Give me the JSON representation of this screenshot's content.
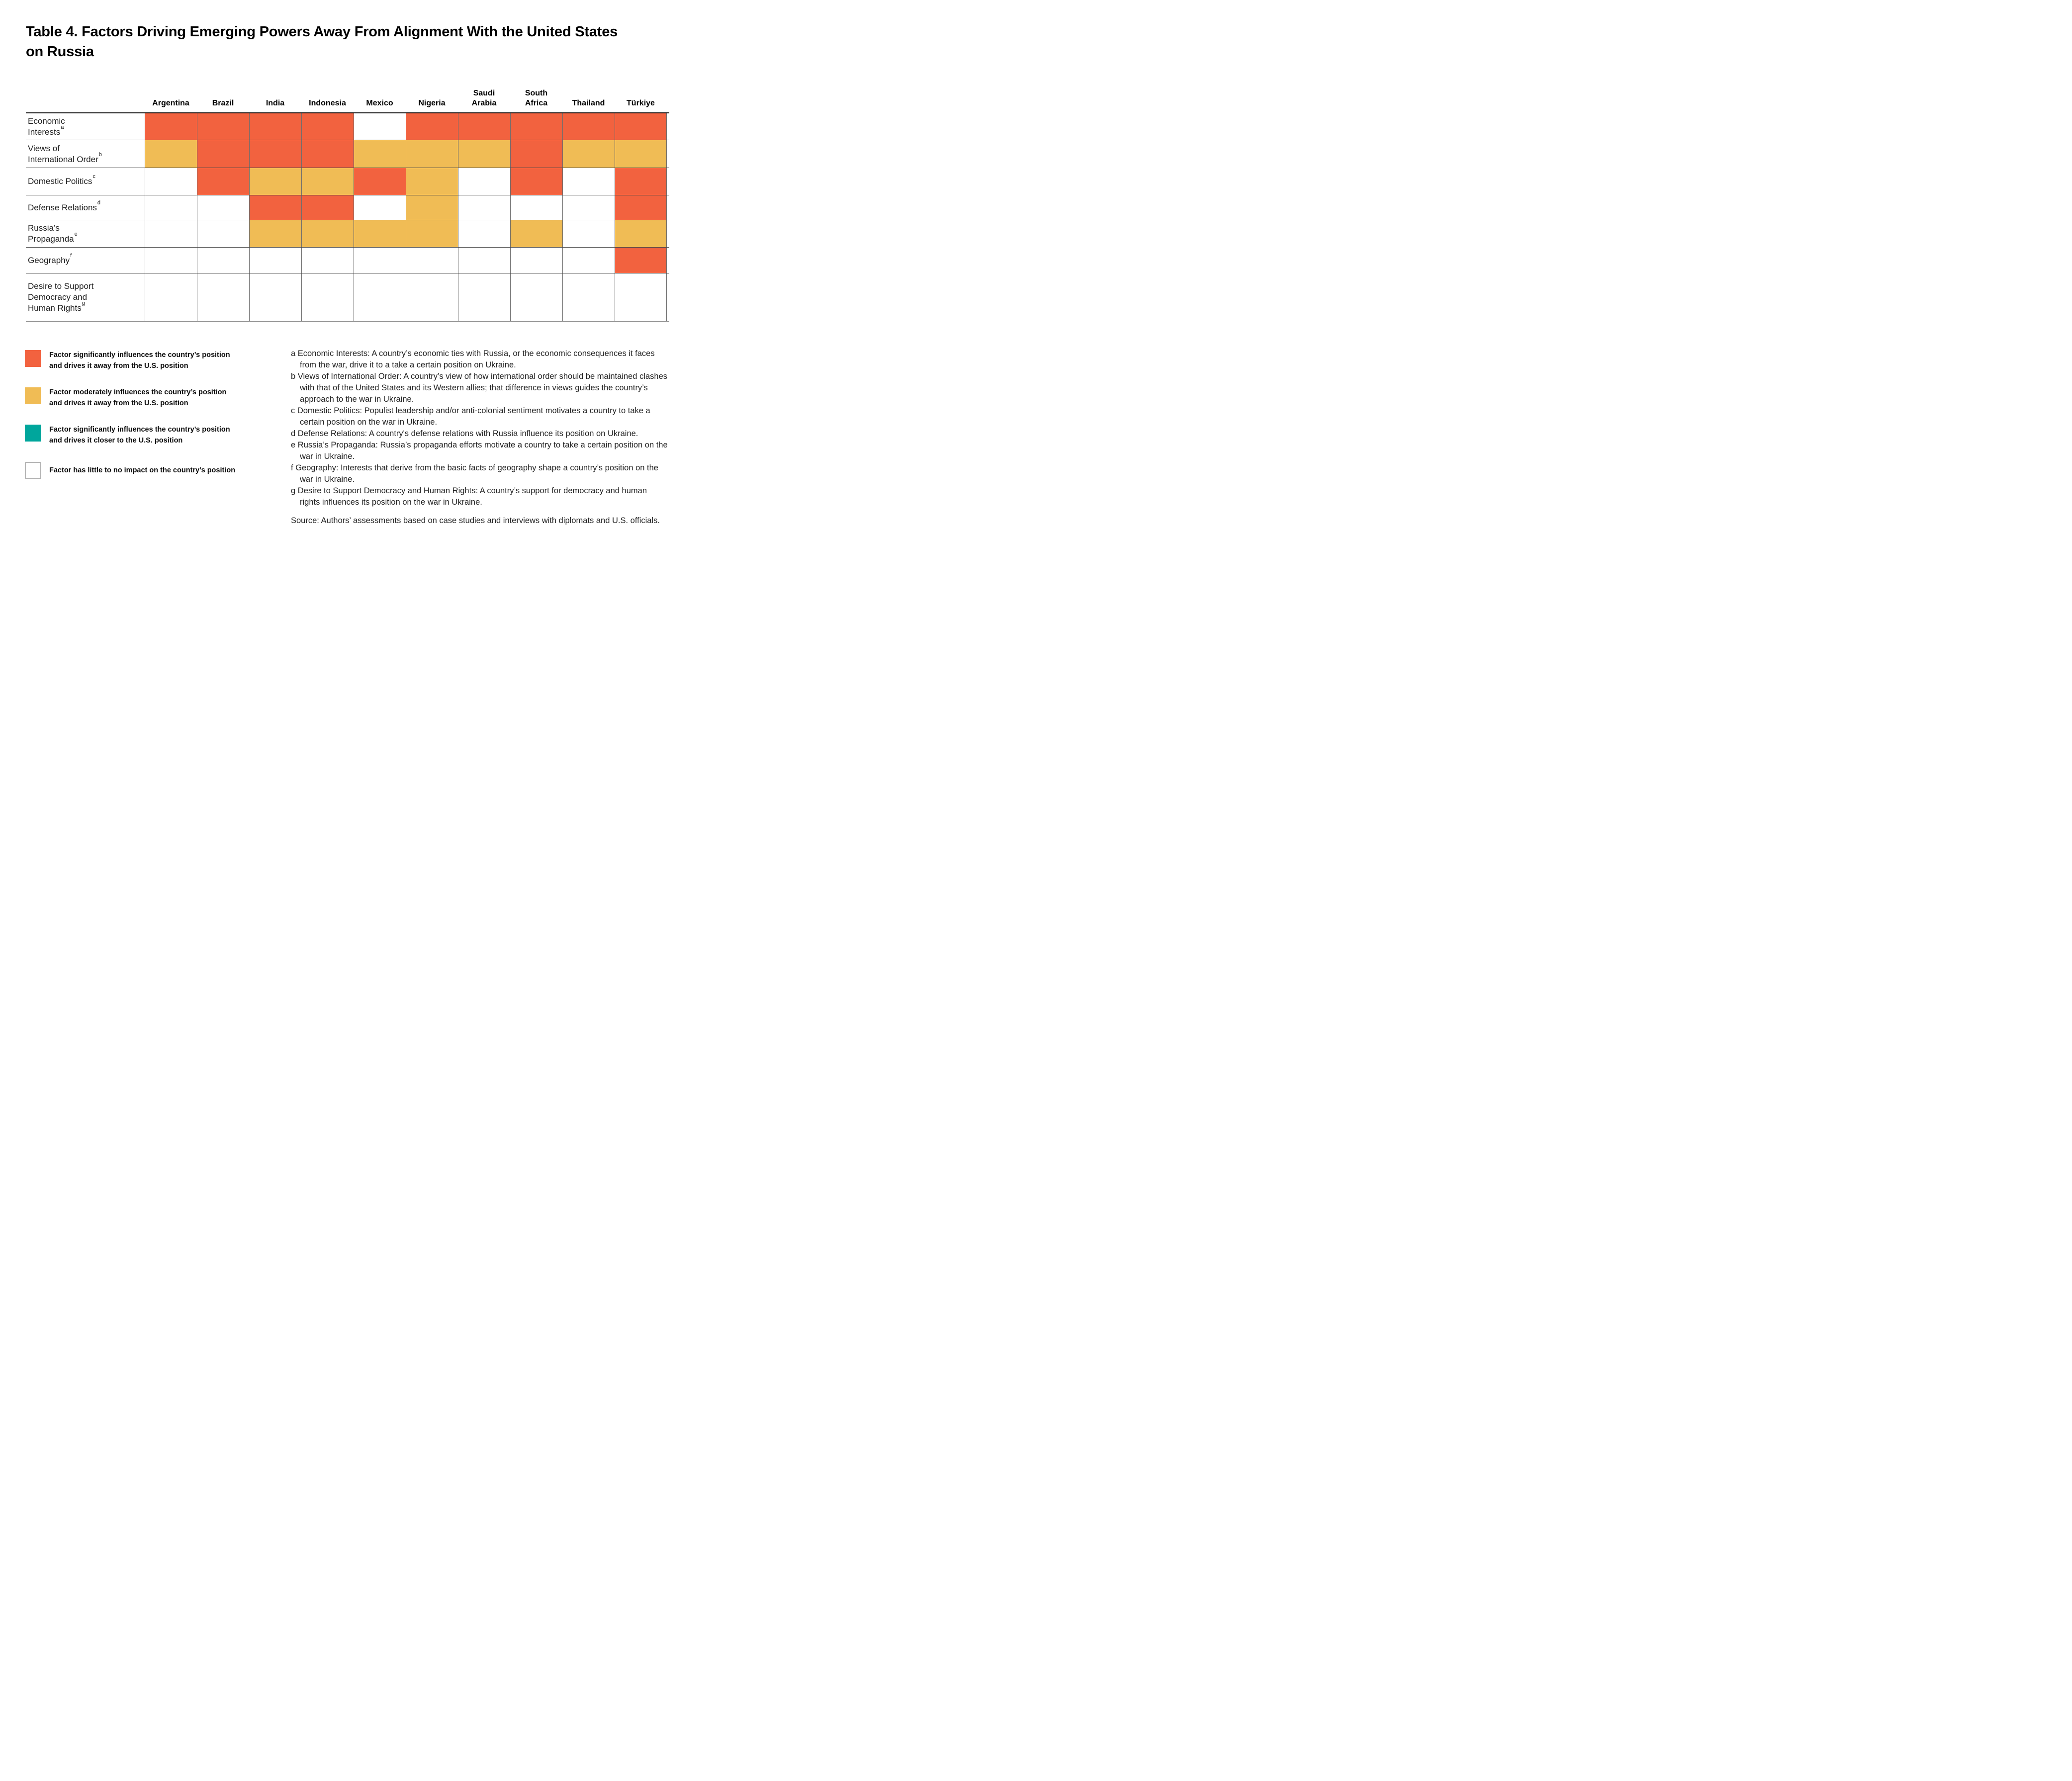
{
  "title": "Table 4. Factors Driving Emerging Powers Away From Alignment With the United States on Russia",
  "table": {
    "columns": [
      "Argentina",
      "Brazil",
      "India",
      "Indonesia",
      "Mexico",
      "Nigeria",
      "Saudi\nArabia",
      "South\nAfrica",
      "Thailand",
      "Türkiye"
    ],
    "rows": [
      {
        "label": "Economic Interests",
        "sup": "a",
        "cells": [
          "S",
          "S",
          "S",
          "S",
          "N",
          "S",
          "S",
          "S",
          "S",
          "S"
        ]
      },
      {
        "label": "Views of International Order",
        "sup": "b",
        "cells": [
          "M",
          "S",
          "S",
          "S",
          "M",
          "M",
          "M",
          "S",
          "M",
          "M"
        ]
      },
      {
        "label": "Domestic Politics",
        "sup": "c",
        "cells": [
          "N",
          "S",
          "M",
          "M",
          "S",
          "M",
          "N",
          "S",
          "N",
          "S"
        ]
      },
      {
        "label": "Defense Relations",
        "sup": "d",
        "cells": [
          "N",
          "N",
          "S",
          "S",
          "N",
          "M",
          "N",
          "N",
          "N",
          "S"
        ]
      },
      {
        "label": "Russia’s Propaganda",
        "sup": "e",
        "cells": [
          "N",
          "N",
          "M",
          "M",
          "M",
          "M",
          "N",
          "M",
          "N",
          "M"
        ]
      },
      {
        "label": "Geography",
        "sup": "f",
        "cells": [
          "N",
          "N",
          "N",
          "N",
          "N",
          "N",
          "N",
          "N",
          "N",
          "S"
        ]
      },
      {
        "label": "Desire to Support Democracy and Human Rights",
        "sup": "g",
        "cells": [
          "N",
          "N",
          "N",
          "N",
          "N",
          "N",
          "N",
          "N",
          "N",
          "N"
        ]
      }
    ]
  },
  "cell_colors": {
    "S": "#F2623F",
    "M": "#F0BC55",
    "C": "#00A69C",
    "N": "#FFFFFF"
  },
  "legend": [
    {
      "key": "S",
      "color": "#F2623F",
      "lines": [
        "Factor significantly influences the country’s position",
        "and drives it away from the U.S. position"
      ]
    },
    {
      "key": "M",
      "color": "#F0BC55",
      "lines": [
        "Factor moderately influences the country’s position",
        "and drives it away from the U.S. position"
      ]
    },
    {
      "key": "C",
      "color": "#00A69C",
      "lines": [
        "Factor significantly influences the country’s position",
        "and drives it closer to the U.S. position"
      ]
    },
    {
      "key": "N",
      "color": "#FFFFFF",
      "lines": [
        "Factor has little to no impact on the country’s position"
      ]
    }
  ],
  "footnotes": [
    {
      "marker": "a",
      "text": "Economic Interests: A country’s economic ties with Russia, or the economic consequences it faces from the war, drive it to a take a certain position on Ukraine."
    },
    {
      "marker": "b",
      "text": "Views of International Order: A country’s view of how international order should be maintained clashes with that of the United States and its Western allies; that difference in views guides the country’s approach to the war in Ukraine."
    },
    {
      "marker": "c",
      "text": "Domestic Politics: Populist leadership and/or anti-colonial sentiment motivates a country to take a certain position on the war in Ukraine."
    },
    {
      "marker": "d",
      "text": "Defense Relations: A country's defense relations with Russia influence its position on Ukraine."
    },
    {
      "marker": "e",
      "text": "Russia’s Propaganda: Russia’s propaganda efforts motivate a country to take a certain position on the war in Ukraine."
    },
    {
      "marker": "f",
      "text": "Geography: Interests that derive from the basic facts of geography shape a country’s position on the war in Ukraine."
    },
    {
      "marker": "g",
      "text": "Desire to Support Democracy and Human Rights: A country’s support for democracy and human rights influences its position on the war in Ukraine."
    }
  ],
  "source": "Source: Authors’ assessments based on case studies and interviews with diplomats and U.S. officials.",
  "chart_data": {
    "type": "heatmap",
    "title": "Table 4. Factors Driving Emerging Powers Away From Alignment With the United States on Russia",
    "columns": [
      "Argentina",
      "Brazil",
      "India",
      "Indonesia",
      "Mexico",
      "Nigeria",
      "Saudi Arabia",
      "South Africa",
      "Thailand",
      "Türkiye"
    ],
    "rows": [
      "Economic Interests",
      "Views of International Order",
      "Domestic Politics",
      "Defense Relations",
      "Russia’s Propaganda",
      "Geography",
      "Desire to Support Democracy and Human Rights"
    ],
    "values": [
      [
        "S",
        "S",
        "S",
        "S",
        "N",
        "S",
        "S",
        "S",
        "S",
        "S"
      ],
      [
        "M",
        "S",
        "S",
        "S",
        "M",
        "M",
        "M",
        "S",
        "M",
        "M"
      ],
      [
        "N",
        "S",
        "M",
        "M",
        "S",
        "M",
        "N",
        "S",
        "N",
        "S"
      ],
      [
        "N",
        "N",
        "S",
        "S",
        "N",
        "M",
        "N",
        "N",
        "N",
        "S"
      ],
      [
        "N",
        "N",
        "M",
        "M",
        "M",
        "M",
        "N",
        "M",
        "N",
        "M"
      ],
      [
        "N",
        "N",
        "N",
        "N",
        "N",
        "N",
        "N",
        "N",
        "N",
        "S"
      ],
      [
        "N",
        "N",
        "N",
        "N",
        "N",
        "N",
        "N",
        "N",
        "N",
        "N"
      ]
    ],
    "value_legend": {
      "S": "Factor significantly influences the country’s position and drives it away from the U.S. position",
      "M": "Factor moderately influences the country’s position and drives it away from the U.S. position",
      "C": "Factor significantly influences the country’s position and drives it closer to the U.S. position",
      "N": "Factor has little to no impact on the country’s position"
    },
    "colors": {
      "S": "#F2623F",
      "M": "#F0BC55",
      "C": "#00A69C",
      "N": "#FFFFFF"
    },
    "legend_position": "bottom-left",
    "grid": true
  }
}
